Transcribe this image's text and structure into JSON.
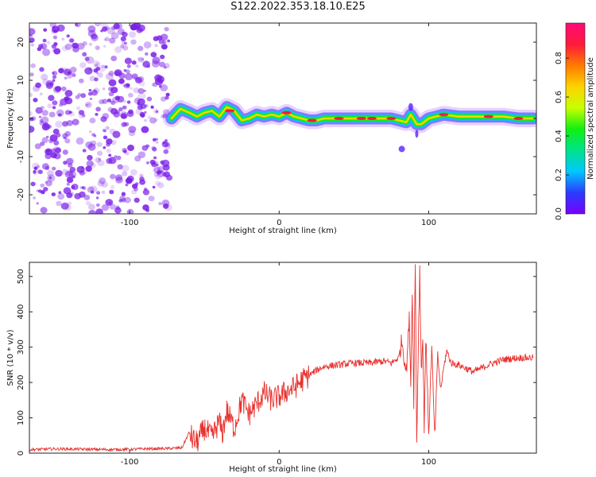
{
  "title": "S122.2022.353.18.10.E25",
  "colors": {
    "snr_line": "#e8322f",
    "dots": "#7a1ee8",
    "colorbar": [
      "#7a00ff",
      "#2a3cff",
      "#00c8ff",
      "#00e38c",
      "#10f010",
      "#c8ff00",
      "#ffd200",
      "#ff7a00",
      "#ff1a3c",
      "#ff0a78"
    ]
  },
  "chart_data": [
    {
      "type": "heatmap",
      "title": "",
      "xlabel": "Height of straight line (km)",
      "ylabel": "Frequency (Hz)",
      "xlim": [
        -167,
        172
      ],
      "ylim": [
        -25,
        25
      ],
      "xticks": [
        -100,
        0,
        100
      ],
      "yticks": [
        -20,
        -10,
        0,
        10,
        20
      ],
      "noise_region_x": [
        -167,
        -73
      ],
      "ridge": {
        "x": [
          -72,
          -66,
          -60,
          -55,
          -50,
          -45,
          -40,
          -35,
          -30,
          -25,
          -20,
          -15,
          -10,
          -5,
          0,
          5,
          10,
          15,
          20,
          25,
          30,
          40,
          50,
          60,
          70,
          75,
          80,
          85,
          88,
          92,
          95,
          100,
          105,
          110,
          120,
          130,
          140,
          150,
          160,
          170
        ],
        "y": [
          0,
          2.5,
          1.5,
          0.5,
          1.5,
          2,
          0.5,
          3,
          2,
          -0.5,
          0,
          1,
          0.5,
          1,
          0.5,
          1.5,
          0.5,
          0,
          -0.5,
          -0.5,
          0,
          0,
          0,
          0,
          0,
          0,
          -0.5,
          -1,
          1,
          -1.5,
          -1.5,
          0,
          0.5,
          1,
          0.5,
          0.5,
          0.5,
          0.5,
          0,
          0
        ]
      },
      "colorbar": {
        "label": "Normalized spectral amplitude",
        "ticks": [
          0.0,
          0.2,
          0.4,
          0.6,
          0.8
        ],
        "tick_labels": [
          "0.0",
          "0.2",
          "0.4",
          "0.6",
          "0.8"
        ],
        "range": [
          0,
          0.98
        ]
      }
    },
    {
      "type": "line",
      "title": "",
      "xlabel": "Height of straight line (km)",
      "ylabel": "SNR (10 * v/v)",
      "xlim": [
        -167,
        172
      ],
      "ylim": [
        0,
        540
      ],
      "xticks": [
        -100,
        0,
        100
      ],
      "yticks": [
        0,
        100,
        200,
        300,
        400,
        500
      ],
      "series": [
        {
          "x": [
            -167,
            -150,
            -130,
            -110,
            -90,
            -75,
            -65,
            -60,
            -58,
            -55,
            -50,
            -45,
            -40,
            -38,
            -35,
            -30,
            -25,
            -20,
            -15,
            -10,
            -5,
            0,
            5,
            10,
            15,
            20,
            25,
            30,
            40,
            50,
            60,
            70,
            75,
            80,
            82,
            85,
            87,
            88,
            89,
            90,
            91,
            92,
            93,
            94,
            95,
            96,
            97,
            98,
            100,
            102,
            104,
            106,
            108,
            110,
            112,
            115,
            120,
            130,
            140,
            150,
            160,
            170
          ],
          "y": [
            10,
            12,
            11,
            10,
            12,
            13,
            15,
            60,
            40,
            30,
            70,
            45,
            90,
            55,
            120,
            70,
            150,
            110,
            140,
            170,
            150,
            160,
            175,
            185,
            205,
            220,
            235,
            245,
            250,
            255,
            255,
            260,
            255,
            270,
            320,
            230,
            380,
            200,
            470,
            150,
            540,
            30,
            300,
            520,
            240,
            320,
            80,
            330,
            60,
            300,
            40,
            280,
            180,
            240,
            290,
            255,
            250,
            230,
            250,
            265,
            270,
            270
          ]
        }
      ]
    }
  ]
}
